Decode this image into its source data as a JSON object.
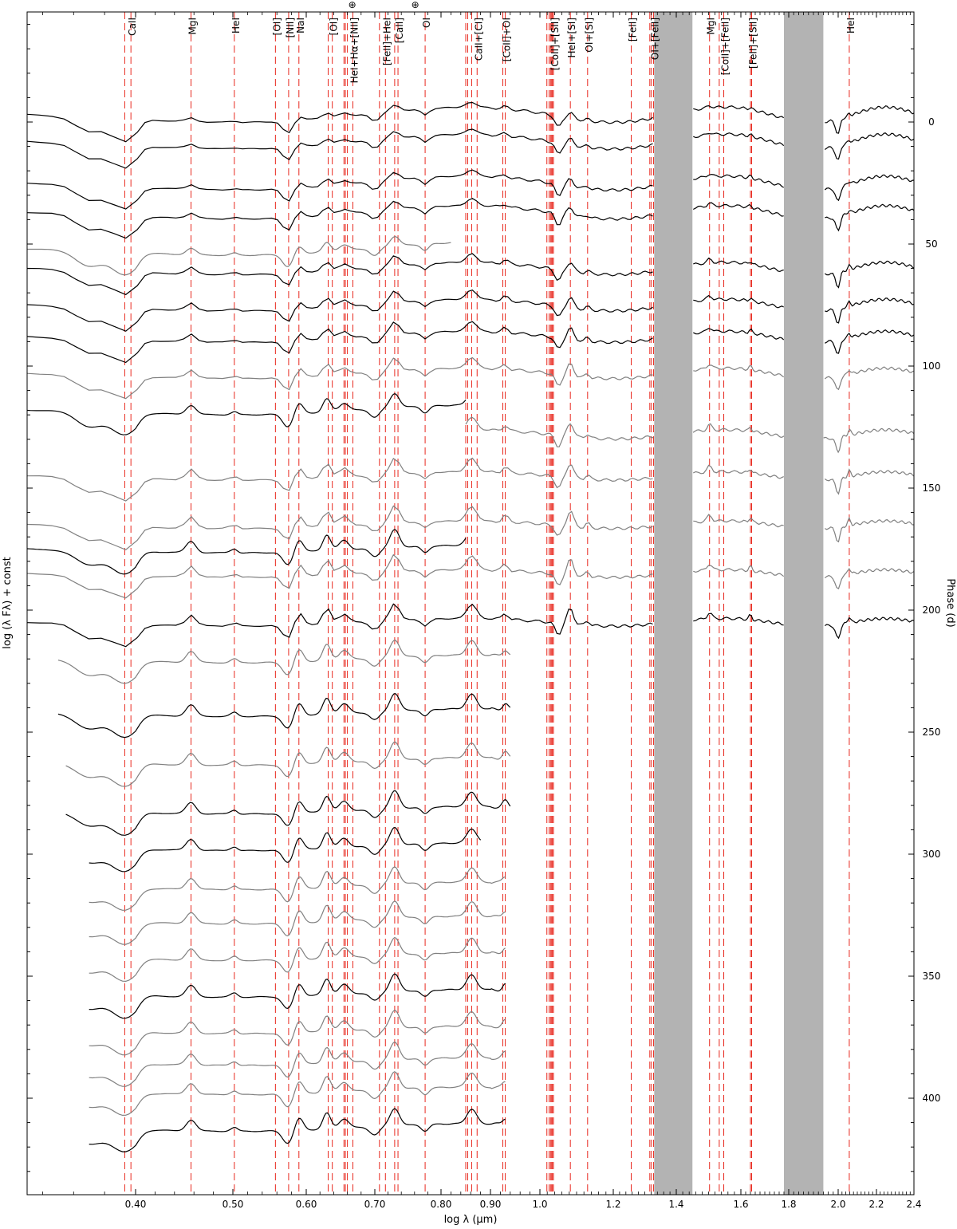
{
  "chart_data": {
    "type": "line",
    "xlabel": "log λ (µm)",
    "ylabel_left": "log (λ Fλ) + const",
    "ylabel_right": "Phase (d)",
    "x_ticks": [
      {
        "v": 0.4,
        "label": "0.40"
      },
      {
        "v": 0.5,
        "label": "0.50"
      },
      {
        "v": 0.6,
        "label": "0.60"
      },
      {
        "v": 0.7,
        "label": "0.70"
      },
      {
        "v": 0.8,
        "label": "0.80"
      },
      {
        "v": 0.9,
        "label": "0.90"
      },
      {
        "v": 1.0,
        "label": "1.0"
      },
      {
        "v": 1.2,
        "label": "1.2"
      },
      {
        "v": 1.4,
        "label": "1.4"
      },
      {
        "v": 1.6,
        "label": "1.6"
      },
      {
        "v": 1.8,
        "label": "1.8"
      },
      {
        "v": 2.0,
        "label": "2.0"
      },
      {
        "v": 2.2,
        "label": "2.2"
      },
      {
        "v": 2.4,
        "label": "2.4"
      }
    ],
    "phase_ticks": [
      0,
      50,
      100,
      150,
      200,
      250,
      300,
      350,
      400
    ],
    "phase_range": [
      -43,
      435
    ],
    "telluric_symbol": "⊕",
    "telluric_bands_logx": [
      [
        1.33,
        1.45
      ],
      [
        1.78,
        1.94
      ]
    ],
    "line_markers": [
      {
        "label": "CaII",
        "x": [
          0.393,
          0.397
        ]
      },
      {
        "label": "MgI",
        "x": [
          0.457
        ]
      },
      {
        "label": "HeI",
        "x": [
          0.502
        ]
      },
      {
        "label": "[OI]",
        "x": [
          0.558
        ]
      },
      {
        "label": "[NII]",
        "x": [
          0.576
        ]
      },
      {
        "label": "NaI",
        "x": [
          0.59
        ]
      },
      {
        "label": "[OI]",
        "x": [
          0.632,
          0.638
        ]
      },
      {
        "label": "HeI+Hα+[NII]",
        "x": [
          0.655,
          0.657,
          0.66,
          0.668
        ]
      },
      {
        "label": "[FeII]+HeI",
        "x": [
          0.707,
          0.716
        ]
      },
      {
        "label": "[CaII]",
        "x": [
          0.73,
          0.735
        ]
      },
      {
        "label": "OI",
        "x": [
          0.776
        ]
      },
      {
        "label": "CaII+[CI]",
        "x": [
          0.85,
          0.854,
          0.862,
          0.873
        ]
      },
      {
        "label": "[CoII]+OI",
        "x": [
          0.925,
          0.93
        ]
      },
      {
        "label": "[CoII]+[SII]",
        "x": [
          1.019,
          1.025,
          1.029,
          1.032,
          1.034,
          1.037
        ]
      },
      {
        "label": "HeI+[SI]",
        "x": [
          1.083
        ]
      },
      {
        "label": "OI+[SI]",
        "x": [
          1.13
        ]
      },
      {
        "label": "[FeII]",
        "x": [
          1.257
        ]
      },
      {
        "label": "OI+[FeII]",
        "x": [
          1.316,
          1.321,
          1.328
        ]
      },
      {
        "label": "MgI",
        "x": [
          1.503
        ]
      },
      {
        "label": "[CoII]+[FeII]",
        "x": [
          1.533,
          1.547
        ]
      },
      {
        "label": "[FeII]+[SiI]",
        "x": [
          1.64,
          1.645
        ]
      },
      {
        "label": "HeI",
        "x": [
          2.058
        ]
      }
    ],
    "spectra": [
      {
        "phase": -3,
        "color": "black",
        "x0": 0.33,
        "x1": 2.4
      },
      {
        "phase": 8,
        "color": "black",
        "x0": 0.33,
        "x1": 2.4
      },
      {
        "phase": 25,
        "color": "black",
        "x0": 0.33,
        "x1": 2.4
      },
      {
        "phase": 37,
        "color": "black",
        "x0": 0.33,
        "x1": 2.4
      },
      {
        "phase": 52,
        "color": "gray",
        "x0": 0.33,
        "x1": 0.82
      },
      {
        "phase": 60,
        "color": "black",
        "x0": 0.33,
        "x1": 2.4
      },
      {
        "phase": 75,
        "color": "black",
        "x0": 0.33,
        "x1": 2.4
      },
      {
        "phase": 88,
        "color": "black",
        "x0": 0.33,
        "x1": 2.4
      },
      {
        "phase": 103,
        "color": "gray",
        "x0": 0.33,
        "x1": 2.4
      },
      {
        "phase": 118,
        "color": "black",
        "x0": 0.33,
        "x1": 0.85
      },
      {
        "phase": 128,
        "color": "gray",
        "x0": 0.85,
        "x1": 2.4
      },
      {
        "phase": 145,
        "color": "gray",
        "x0": 0.33,
        "x1": 2.4
      },
      {
        "phase": 165,
        "color": "gray",
        "x0": 0.33,
        "x1": 2.4
      },
      {
        "phase": 175,
        "color": "black",
        "x0": 0.33,
        "x1": 0.85
      },
      {
        "phase": 185,
        "color": "gray",
        "x0": 0.33,
        "x1": 2.4
      },
      {
        "phase": 205,
        "color": "black",
        "x0": 0.33,
        "x1": 2.4
      },
      {
        "phase": 220,
        "color": "gray",
        "x0": 0.35,
        "x1": 0.94
      },
      {
        "phase": 242,
        "color": "black",
        "x0": 0.35,
        "x1": 0.94
      },
      {
        "phase": 262,
        "color": "gray",
        "x0": 0.355,
        "x1": 0.94
      },
      {
        "phase": 282,
        "color": "black",
        "x0": 0.355,
        "x1": 0.94
      },
      {
        "phase": 297,
        "color": "black",
        "x0": 0.37,
        "x1": 0.88
      },
      {
        "phase": 313,
        "color": "gray",
        "x0": 0.37,
        "x1": 0.93
      },
      {
        "phase": 327,
        "color": "gray",
        "x0": 0.37,
        "x1": 0.93
      },
      {
        "phase": 342,
        "color": "gray",
        "x0": 0.37,
        "x1": 0.93
      },
      {
        "phase": 357,
        "color": "black",
        "x0": 0.37,
        "x1": 0.93
      },
      {
        "phase": 372,
        "color": "gray",
        "x0": 0.37,
        "x1": 0.93
      },
      {
        "phase": 385,
        "color": "gray",
        "x0": 0.37,
        "x1": 0.93
      },
      {
        "phase": 397,
        "color": "gray",
        "x0": 0.37,
        "x1": 0.93
      },
      {
        "phase": 412,
        "color": "black",
        "x0": 0.37,
        "x1": 0.93
      }
    ]
  }
}
